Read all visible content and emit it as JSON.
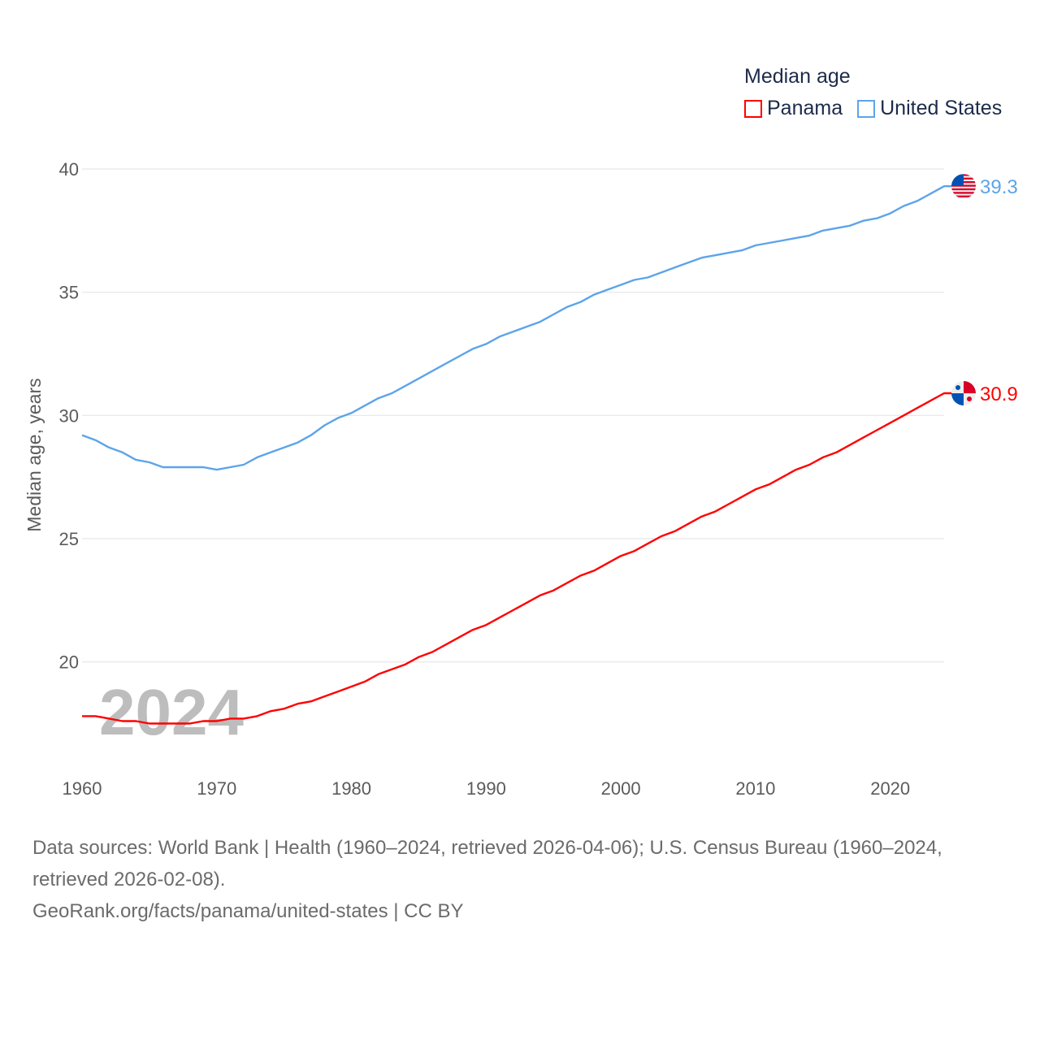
{
  "chart_data": {
    "type": "line",
    "title": "Median age",
    "xlabel": "",
    "ylabel": "Median age, years",
    "xlim": [
      1960,
      2024
    ],
    "ylim": [
      16,
      40
    ],
    "yticks": [
      20,
      25,
      30,
      35,
      40
    ],
    "xticks": [
      1960,
      1970,
      1980,
      1990,
      2000,
      2010,
      2020
    ],
    "grid": true,
    "legend_position": "top-right",
    "watermark_year": "2024",
    "x": [
      1960,
      1961,
      1962,
      1963,
      1964,
      1965,
      1966,
      1967,
      1968,
      1969,
      1970,
      1971,
      1972,
      1973,
      1974,
      1975,
      1976,
      1977,
      1978,
      1979,
      1980,
      1981,
      1982,
      1983,
      1984,
      1985,
      1986,
      1987,
      1988,
      1989,
      1990,
      1991,
      1992,
      1993,
      1994,
      1995,
      1996,
      1997,
      1998,
      1999,
      2000,
      2001,
      2002,
      2003,
      2004,
      2005,
      2006,
      2007,
      2008,
      2009,
      2010,
      2011,
      2012,
      2013,
      2014,
      2015,
      2016,
      2017,
      2018,
      2019,
      2020,
      2021,
      2022,
      2023,
      2024
    ],
    "series": [
      {
        "name": "Panama",
        "color": "#ff0000",
        "end_label": "30.9",
        "flag": "panama-flag",
        "values": [
          17.8,
          17.8,
          17.7,
          17.6,
          17.6,
          17.5,
          17.5,
          17.5,
          17.5,
          17.6,
          17.6,
          17.7,
          17.7,
          17.8,
          18.0,
          18.1,
          18.3,
          18.4,
          18.6,
          18.8,
          19.0,
          19.2,
          19.5,
          19.7,
          19.9,
          20.2,
          20.4,
          20.7,
          21.0,
          21.3,
          21.5,
          21.8,
          22.1,
          22.4,
          22.7,
          22.9,
          23.2,
          23.5,
          23.7,
          24.0,
          24.3,
          24.5,
          24.8,
          25.1,
          25.3,
          25.6,
          25.9,
          26.1,
          26.4,
          26.7,
          27.0,
          27.2,
          27.5,
          27.8,
          28.0,
          28.3,
          28.5,
          28.8,
          29.1,
          29.4,
          29.7,
          30.0,
          30.3,
          30.6,
          30.9
        ]
      },
      {
        "name": "United States",
        "color": "#5ca4ea",
        "end_label": "39.3",
        "flag": "us-flag",
        "values": [
          29.2,
          29.0,
          28.7,
          28.5,
          28.2,
          28.1,
          27.9,
          27.9,
          27.9,
          27.9,
          27.8,
          27.9,
          28.0,
          28.3,
          28.5,
          28.7,
          28.9,
          29.2,
          29.6,
          29.9,
          30.1,
          30.4,
          30.7,
          30.9,
          31.2,
          31.5,
          31.8,
          32.1,
          32.4,
          32.7,
          32.9,
          33.2,
          33.4,
          33.6,
          33.8,
          34.1,
          34.4,
          34.6,
          34.9,
          35.1,
          35.3,
          35.5,
          35.6,
          35.8,
          36.0,
          36.2,
          36.4,
          36.5,
          36.6,
          36.7,
          36.9,
          37.0,
          37.1,
          37.2,
          37.3,
          37.5,
          37.6,
          37.7,
          37.9,
          38.0,
          38.2,
          38.5,
          38.7,
          39.0,
          39.3
        ]
      }
    ]
  },
  "footer": {
    "sources": "Data sources: World Bank | Health (1960–2024, retrieved 2026-04-06); U.S. Census Bureau (1960–2024, retrieved 2026-02-08).",
    "credit": "GeoRank.org/facts/panama/united-states | CC BY"
  }
}
